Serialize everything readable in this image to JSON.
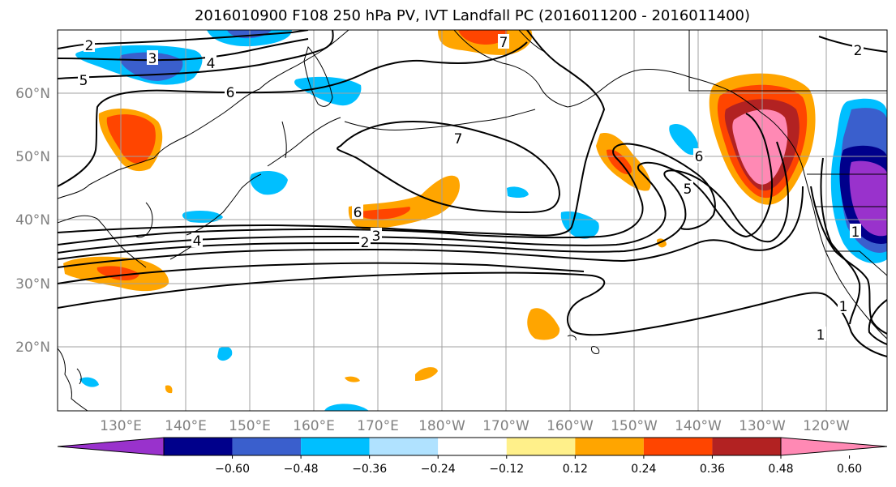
{
  "title": "2016010900 F108 250 hPa PV, IVT Landfall PC (2016011200 - 2016011400)",
  "map": {
    "lat_labels": [
      "60°N",
      "50°N",
      "40°N",
      "30°N",
      "20°N"
    ],
    "lon_labels": [
      "130°E",
      "140°E",
      "150°E",
      "160°E",
      "170°E",
      "180°W",
      "170°W",
      "160°W",
      "150°W",
      "140°W",
      "130°W",
      "120°W"
    ],
    "contour_labels": [
      "2",
      "3",
      "4",
      "5",
      "6",
      "7",
      "7",
      "6",
      "5",
      "6",
      "4",
      "2",
      "3",
      "1",
      "1",
      "1",
      "2"
    ],
    "gridlines": true
  },
  "colorbar": {
    "ticks": [
      "−0.60",
      "−0.48",
      "−0.36",
      "−0.24",
      "−0.12",
      "0.12",
      "0.24",
      "0.36",
      "0.48",
      "0.60"
    ],
    "colors": [
      "#9932cc",
      "#00008b",
      "#3a5fcd",
      "#00bfff",
      "#b0e2ff",
      "#ffffff",
      "#fff08a",
      "#ffa500",
      "#ff4500",
      "#b22222",
      "#ff89b4"
    ],
    "extend": "both"
  }
}
